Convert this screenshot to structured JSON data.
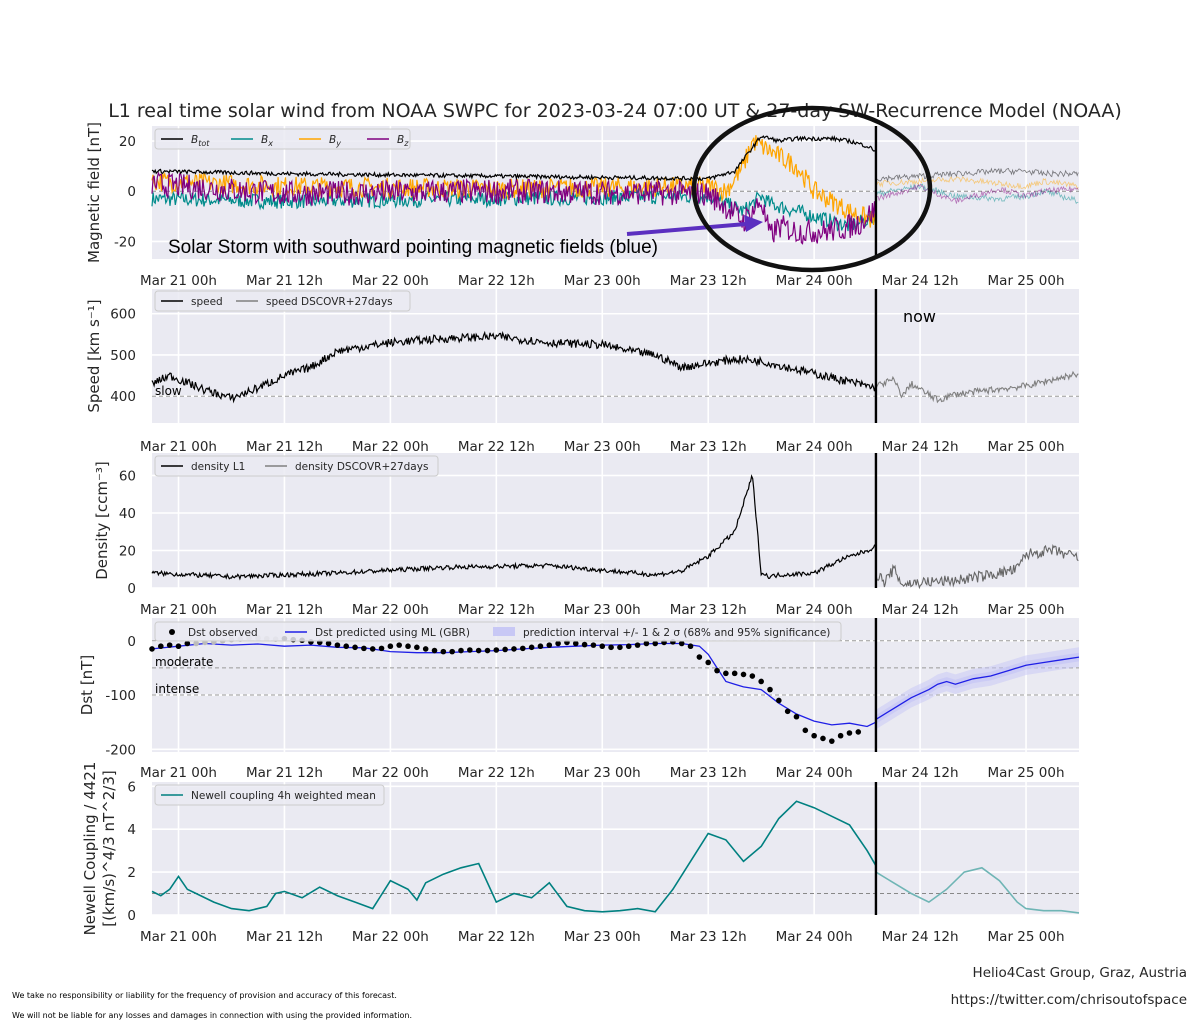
{
  "title": "L1 real time solar wind from NOAA SWPC for 2023-03-24 07:00 UT & 27-day SW-Recurrence Model (NOAA)",
  "x_tick_labels": [
    "Mar 21 00h",
    "Mar 21 12h",
    "Mar 22 00h",
    "Mar 22 12h",
    "Mar 23 00h",
    "Mar 23 12h",
    "Mar 24 00h",
    "Mar 24 12h",
    "Mar 25 00h"
  ],
  "colors": {
    "panel_bg": "#eaeaf2",
    "grid": "#ffffff",
    "btot": "#000000",
    "bx": "#008b8b",
    "by": "#ffa500",
    "bz": "#800080",
    "speed": "#000000",
    "recurrence": "#808080",
    "dst_pred": "#1f1fe6",
    "dst_band": "#c8c8f5",
    "newell": "#008080",
    "newell_forecast": "#6fb5b5",
    "arrow": "#5b2fc0"
  },
  "annotations": {
    "storm_text": "Solar Storm with southward pointing magnetic fields (blue)",
    "now_label": "now"
  },
  "footer": {
    "disclaimer_1": "We take no responsibility or liability for the frequency of provision and accuracy of this forecast.",
    "disclaimer_2": "We will not be liable for any losses and damages in connection with using the provided information.",
    "credit_1": "Helio4Cast Group, Graz, Austria",
    "credit_2": "https://twitter.com/chrisoutofspace"
  },
  "chart_data": [
    {
      "type": "line",
      "panel": "magnetic-field",
      "ylabel": "Magnetic field [nT]",
      "ylim": [
        -27,
        26
      ],
      "yticks": [
        -20,
        0,
        20
      ],
      "x_unit": "hours since Mar 21 00h",
      "xlim": [
        -3,
        102
      ],
      "now_hour": 79,
      "legend": [
        "B_tot",
        "B_x",
        "B_y",
        "B_z"
      ],
      "series": [
        {
          "name": "B_tot",
          "x": [
            -3,
            12,
            36,
            60,
            63,
            66,
            68,
            70,
            74,
            76,
            78,
            79
          ],
          "y": [
            8,
            7,
            6,
            5,
            8,
            22,
            20,
            21,
            21,
            20,
            18,
            16
          ]
        },
        {
          "name": "B_x",
          "x": [
            -3,
            12,
            36,
            60,
            62,
            64,
            66,
            67,
            70,
            74,
            76,
            79
          ],
          "y": [
            -3,
            -4,
            -3,
            -2,
            -5,
            -8,
            -2,
            -5,
            -8,
            -12,
            -14,
            -10
          ]
        },
        {
          "name": "B_y",
          "x": [
            -3,
            12,
            36,
            60,
            62,
            64,
            65,
            66,
            68,
            70,
            72,
            74,
            76,
            79
          ],
          "y": [
            4,
            2,
            1,
            2,
            0,
            10,
            20,
            18,
            14,
            10,
            0,
            -4,
            -8,
            -12
          ]
        },
        {
          "name": "B_z",
          "x": [
            -3,
            12,
            36,
            60,
            62,
            64,
            66,
            67,
            68,
            70,
            73,
            75,
            77,
            79
          ],
          "y": [
            3,
            -1,
            0,
            -1,
            -6,
            -12,
            -4,
            -18,
            -14,
            -16,
            -16,
            -15,
            -13,
            -7
          ]
        },
        {
          "name": "B_tot DSCOVR+27days",
          "x": [
            79,
            84,
            88,
            93,
            96,
            98,
            102
          ],
          "y": [
            5,
            6,
            7,
            8,
            8,
            7,
            7
          ]
        },
        {
          "name": "B_x DSCOVR+27days",
          "x": [
            79,
            84,
            88,
            93,
            96,
            98,
            102
          ],
          "y": [
            -1,
            2,
            -2,
            -3,
            -2,
            0,
            -4
          ]
        },
        {
          "name": "B_y DSCOVR+27days",
          "x": [
            79,
            84,
            88,
            93,
            96,
            98,
            102
          ],
          "y": [
            3,
            4,
            5,
            3,
            2,
            4,
            2
          ]
        },
        {
          "name": "B_z DSCOVR+27days",
          "x": [
            79,
            84,
            88,
            93,
            96,
            98,
            102
          ],
          "y": [
            -3,
            2,
            -4,
            1,
            -2,
            0,
            1
          ]
        }
      ]
    },
    {
      "type": "line",
      "panel": "speed",
      "ylabel": "Speed [km s⁻¹]",
      "ylim": [
        335,
        660
      ],
      "yticks": [
        400,
        500,
        600
      ],
      "reference_line": 400,
      "reference_label": "slow",
      "legend": [
        "speed",
        "speed DSCOVR+27days"
      ],
      "series": [
        {
          "name": "speed",
          "x": [
            -3,
            -1,
            3,
            6,
            9,
            12,
            15,
            18,
            24,
            30,
            36,
            42,
            48,
            51,
            54,
            57,
            60,
            63,
            66,
            69,
            72,
            75,
            79
          ],
          "y": [
            430,
            450,
            415,
            395,
            420,
            450,
            470,
            510,
            530,
            540,
            545,
            530,
            525,
            510,
            500,
            470,
            480,
            490,
            485,
            470,
            455,
            440,
            420
          ]
        },
        {
          "name": "speed DSCOVR+27days",
          "x": [
            79,
            81,
            82,
            83,
            86,
            88,
            92,
            96,
            100,
            102
          ],
          "y": [
            425,
            440,
            400,
            430,
            390,
            405,
            415,
            425,
            445,
            455
          ]
        }
      ]
    },
    {
      "type": "line",
      "panel": "density",
      "ylabel": "Density [ccm⁻³]",
      "ylim": [
        0,
        72
      ],
      "yticks": [
        0,
        20,
        40,
        60
      ],
      "legend": [
        "density L1",
        "density DSCOVR+27days"
      ],
      "series": [
        {
          "name": "density L1",
          "x": [
            -3,
            6,
            18,
            30,
            42,
            54,
            57,
            60,
            63,
            64,
            65,
            66,
            67,
            68,
            72,
            75,
            78,
            79
          ],
          "y": [
            8,
            6,
            8,
            11,
            12,
            7,
            9,
            17,
            30,
            45,
            60,
            8,
            6,
            7,
            8,
            15,
            20,
            22
          ]
        },
        {
          "name": "density DSCOVR+27days",
          "x": [
            79,
            80,
            81,
            82,
            84,
            88,
            92,
            95,
            96,
            99,
            102
          ],
          "y": [
            8,
            3,
            10,
            2,
            3,
            4,
            7,
            10,
            18,
            20,
            16
          ]
        }
      ]
    },
    {
      "type": "line",
      "panel": "dst",
      "ylabel": "Dst [nT]",
      "ylim": [
        -205,
        42
      ],
      "yticks": [
        -200,
        -100,
        0
      ],
      "reference_lines": [
        {
          "y": 0,
          "label": ""
        },
        {
          "y": -50,
          "label": "moderate"
        },
        {
          "y": -100,
          "label": "intense"
        }
      ],
      "legend": [
        "Dst observed",
        "Dst predicted using ML (GBR)",
        "prediction interval +/- 1 & 2 σ (68% and 95% significance)"
      ],
      "series": [
        {
          "name": "Dst observed",
          "x": [
            -3,
            -2,
            -1,
            0,
            1,
            2,
            3,
            4,
            5,
            6,
            7,
            8,
            9,
            10,
            11,
            12,
            13,
            14,
            15,
            16,
            17,
            18,
            19,
            20,
            21,
            22,
            23,
            24,
            25,
            26,
            27,
            28,
            29,
            30,
            31,
            32,
            33,
            34,
            35,
            36,
            37,
            38,
            39,
            40,
            41,
            42,
            43,
            44,
            45,
            46,
            47,
            48,
            49,
            50,
            51,
            52,
            53,
            54,
            55,
            56,
            57,
            58,
            59,
            60,
            61,
            62,
            63,
            64,
            65,
            66,
            67,
            68,
            69,
            70,
            71,
            72,
            73,
            74,
            75,
            76,
            77
          ],
          "y": [
            -15,
            -10,
            -8,
            -10,
            -5,
            -5,
            -3,
            -2,
            0,
            2,
            3,
            5,
            5,
            4,
            3,
            4,
            2,
            1,
            -2,
            -3,
            -5,
            -8,
            -10,
            -12,
            -14,
            -15,
            -14,
            -10,
            -8,
            -10,
            -12,
            -15,
            -18,
            -20,
            -20,
            -18,
            -17,
            -18,
            -18,
            -17,
            -16,
            -15,
            -14,
            -12,
            -10,
            -8,
            -5,
            -3,
            -5,
            -7,
            -8,
            -10,
            -12,
            -12,
            -10,
            -8,
            -5,
            -5,
            -3,
            -2,
            -5,
            -10,
            -30,
            -40,
            -55,
            -60,
            -60,
            -62,
            -65,
            -75,
            -90,
            -110,
            -130,
            -140,
            -165,
            -175,
            -180,
            -185,
            -175,
            -170,
            -168
          ]
        },
        {
          "name": "Dst predicted using ML (GBR)",
          "x": [
            -3,
            0,
            3,
            6,
            9,
            12,
            15,
            18,
            21,
            24,
            27,
            30,
            33,
            36,
            39,
            42,
            45,
            48,
            51,
            54,
            57,
            59,
            60,
            61,
            62,
            63,
            64,
            66,
            68,
            70,
            72,
            74,
            76,
            78,
            79
          ],
          "y": [
            -15,
            -10,
            -5,
            -8,
            -6,
            -10,
            -8,
            -12,
            -13,
            -20,
            -22,
            -22,
            -20,
            -18,
            -15,
            -12,
            -10,
            -8,
            -7,
            -5,
            -5,
            -10,
            -25,
            -50,
            -75,
            -80,
            -85,
            -90,
            -115,
            -135,
            -148,
            -155,
            -152,
            -158,
            -150
          ]
        },
        {
          "name": "Dst forecast",
          "x": [
            79,
            81,
            83,
            85,
            86,
            87,
            88,
            90,
            92,
            94,
            96,
            98,
            100,
            102
          ],
          "y": [
            -145,
            -125,
            -105,
            -90,
            -80,
            -75,
            -80,
            -70,
            -65,
            -55,
            -45,
            -40,
            -35,
            -30
          ]
        }
      ],
      "prediction_interval_sigma": [
        1,
        2
      ],
      "prediction_interval_half_width_nT": [
        8,
        18
      ]
    },
    {
      "type": "line",
      "panel": "newell",
      "ylabel": "Newell Coupling / 4421 [(km/s)^4/3 nT^2/3]",
      "ylim": [
        0,
        6.2
      ],
      "yticks": [
        0,
        2,
        4,
        6
      ],
      "reference_line": 1,
      "legend": [
        "Newell coupling 4h weighted mean"
      ],
      "series": [
        {
          "name": "Newell coupling 4h weighted mean",
          "x": [
            -3,
            -2,
            -1,
            0,
            1,
            2,
            4,
            6,
            8,
            10,
            11,
            12,
            14,
            16,
            18,
            20,
            22,
            24,
            26,
            27,
            28,
            30,
            32,
            34,
            36,
            38,
            40,
            42,
            44,
            46,
            48,
            50,
            52,
            54,
            56,
            58,
            60,
            62,
            64,
            66,
            68,
            70,
            72,
            74,
            76,
            78,
            79
          ],
          "y": [
            1.1,
            0.9,
            1.2,
            1.8,
            1.2,
            1.0,
            0.6,
            0.3,
            0.2,
            0.4,
            1.0,
            1.1,
            0.8,
            1.3,
            0.9,
            0.6,
            0.3,
            1.6,
            1.2,
            0.7,
            1.5,
            1.9,
            2.2,
            2.4,
            0.6,
            1.0,
            0.8,
            1.5,
            0.4,
            0.2,
            0.15,
            0.2,
            0.3,
            0.15,
            1.2,
            2.5,
            3.8,
            3.5,
            2.5,
            3.2,
            4.5,
            5.3,
            5.0,
            4.6,
            4.2,
            3.0,
            2.3
          ]
        },
        {
          "name": "Newell coupling DSCOVR+27days",
          "x": [
            79,
            81,
            83,
            85,
            87,
            89,
            91,
            93,
            95,
            96,
            98,
            100,
            102
          ],
          "y": [
            2.0,
            1.5,
            1.0,
            0.6,
            1.2,
            2.0,
            2.2,
            1.6,
            0.6,
            0.3,
            0.2,
            0.2,
            0.1
          ]
        }
      ]
    }
  ]
}
